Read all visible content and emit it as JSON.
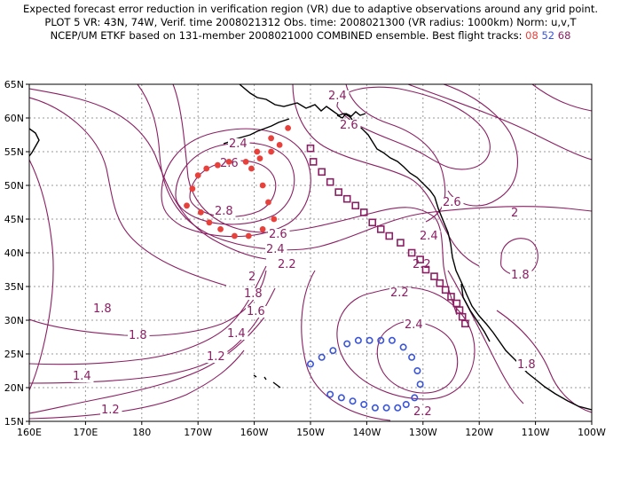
{
  "title": {
    "line1": "Expected forecast error reduction in verification region (VR) due to adaptive observations around any grid point.",
    "line2": "PLOT 5 VR: 43N, 74W, Verif. time 2008021312 Obs. time: 2008021300 (VR radius: 1000km) Norm: u,v,T",
    "line3_prefix": "NCEP/UM ETKF based on 131-member 2008021000 COMBINED ensemble.  Best flight tracks:",
    "track_a": "08",
    "track_b": "52",
    "track_c": "68"
  },
  "colors": {
    "contour": "#8a1f63",
    "track_08": "#e8413b",
    "track_52": "#3a55d6",
    "track_68": "#8a1f63"
  },
  "axes": {
    "x_ticks": [
      "160E",
      "170E",
      "180",
      "170W",
      "160W",
      "150W",
      "140W",
      "130W",
      "120W",
      "110W",
      "100W"
    ],
    "y_ticks": [
      "65N",
      "60N",
      "55N",
      "50N",
      "45N",
      "40N",
      "35N",
      "30N",
      "25N",
      "20N",
      "15N"
    ]
  },
  "contour_labels": [
    "2.4",
    "2.6",
    "2.4",
    "2.6",
    "2.8",
    "2.6",
    "2.4",
    "2.2",
    "2",
    "1.8",
    "1.6",
    "1.4",
    "1.2",
    "1.8",
    "1.8",
    "1.4",
    "1.2",
    "2.6",
    "2.4",
    "2.2",
    "2",
    "1.8",
    "1.8",
    "2.2",
    "2.4",
    "2.2"
  ],
  "tracks": {
    "08_lonlat": [
      [
        -172,
        47
      ],
      [
        -171,
        49.5
      ],
      [
        -170,
        51.5
      ],
      [
        -168.5,
        52.5
      ],
      [
        -166.5,
        53
      ],
      [
        -164.5,
        53.5
      ],
      [
        -161.5,
        53.5
      ],
      [
        -159,
        54
      ],
      [
        -157,
        55
      ],
      [
        -155.5,
        56
      ],
      [
        -154,
        58.5
      ],
      [
        -157,
        57
      ],
      [
        -159.5,
        55
      ],
      [
        -160.5,
        52.5
      ],
      [
        -158.5,
        50
      ],
      [
        -157.5,
        47.5
      ],
      [
        -156.5,
        45
      ],
      [
        -158.5,
        43.5
      ],
      [
        -161,
        42.5
      ],
      [
        -163.5,
        42.5
      ],
      [
        -166,
        43.5
      ],
      [
        -168,
        44.5
      ],
      [
        -169.5,
        46
      ]
    ],
    "52_lonlat": [
      [
        -150,
        23.5
      ],
      [
        -148,
        24.5
      ],
      [
        -146,
        25.5
      ],
      [
        -143.5,
        26.5
      ],
      [
        -141.5,
        27
      ],
      [
        -139.5,
        27
      ],
      [
        -137.5,
        27
      ],
      [
        -135.5,
        27
      ],
      [
        -133.5,
        26
      ],
      [
        -132,
        24.5
      ],
      [
        -131,
        22.5
      ],
      [
        -130.5,
        20.5
      ],
      [
        -131.5,
        18.5
      ],
      [
        -133,
        17.5
      ],
      [
        -134.5,
        17
      ],
      [
        -136.5,
        17
      ],
      [
        -138.5,
        17
      ],
      [
        -140.5,
        17.5
      ],
      [
        -142.5,
        18
      ],
      [
        -144.5,
        18.5
      ],
      [
        -146.5,
        19
      ]
    ],
    "68_lonlat": [
      [
        -150,
        55.5
      ],
      [
        -149.5,
        53.5
      ],
      [
        -148,
        52
      ],
      [
        -146.5,
        50.5
      ],
      [
        -145,
        49
      ],
      [
        -143.5,
        48
      ],
      [
        -142,
        47
      ],
      [
        -140.5,
        46
      ],
      [
        -139,
        44.5
      ],
      [
        -137.5,
        43.5
      ],
      [
        -136,
        42.5
      ],
      [
        -134,
        41.5
      ],
      [
        -132,
        40
      ],
      [
        -130.5,
        39
      ],
      [
        -129.5,
        37.5
      ],
      [
        -128,
        36.5
      ],
      [
        -127,
        35.5
      ],
      [
        -126,
        34.5
      ],
      [
        -125,
        33.5
      ],
      [
        -124,
        32.5
      ],
      [
        -123.5,
        31.5
      ],
      [
        -123,
        30.5
      ],
      [
        -122.5,
        29.5
      ]
    ]
  }
}
